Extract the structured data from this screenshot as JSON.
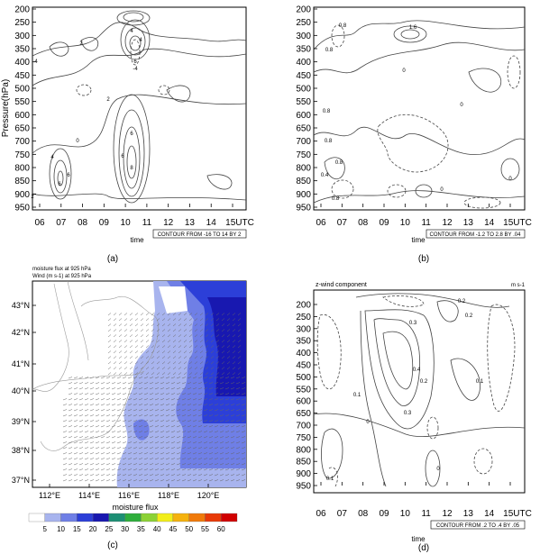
{
  "chart_data": [
    {
      "panel": "(a)",
      "type": "contour",
      "ylabel": "Pressure(hPa)",
      "xlabel": "time",
      "x_ticks": [
        "06",
        "07",
        "08",
        "09",
        "10",
        "11",
        "12",
        "13",
        "14",
        "15UTC"
      ],
      "y_ticks": [
        "200",
        "250",
        "300",
        "350",
        "400",
        "450",
        "500",
        "550",
        "600",
        "650",
        "700",
        "750",
        "800",
        "850",
        "900",
        "950"
      ],
      "contour_info": "CONTOUR FROM -16 TO 14 BY 2",
      "contour_labels": [
        "4",
        "2",
        "4",
        "4",
        "6",
        "-4",
        "0",
        "6",
        "8",
        "2",
        "2",
        "4",
        "6",
        "6",
        "6"
      ]
    },
    {
      "panel": "(b)",
      "type": "contour",
      "xlabel": "time",
      "x_ticks": [
        "06",
        "07",
        "08",
        "09",
        "10",
        "11",
        "12",
        "13",
        "14",
        "15UTC"
      ],
      "y_ticks": [
        "200",
        "250",
        "300",
        "350",
        "400",
        "450",
        "500",
        "550",
        "600",
        "650",
        "700",
        "750",
        "800",
        "850",
        "900",
        "950"
      ],
      "contour_info": "CONTOUR FROM -1.2 TO 2.8 BY .04",
      "contour_labels": [
        "0.8",
        "1.6",
        "0.8",
        "0.8",
        "0",
        "0.8",
        "0",
        "0.8",
        "0.4",
        "0.8",
        "0",
        "0"
      ]
    },
    {
      "panel": "(c)",
      "type": "map",
      "title_lines": [
        "moisture flux at 925 hPa",
        "Wind (m s-1) at 925 hPa"
      ],
      "x_ticks": [
        "112°E",
        "114°E",
        "116°E",
        "118°E",
        "120°E"
      ],
      "y_ticks": [
        "43°N",
        "42°N",
        "41°N",
        "40°N",
        "39°N",
        "38°N",
        "37°N"
      ],
      "colorbar_label": "moisture flux",
      "colorbar_ticks": [
        "5",
        "10",
        "15",
        "20",
        "25",
        "30",
        "35",
        "40",
        "45",
        "50",
        "55",
        "60"
      ],
      "colorbar_colors": [
        "#ffffff",
        "#a8b4ee",
        "#6f7fe6",
        "#2c3fd8",
        "#1818b0",
        "#1d8f74",
        "#2fae3c",
        "#8cd236",
        "#f2ee1a",
        "#f5b20e",
        "#f07a0a",
        "#e83a08",
        "#d10000"
      ]
    },
    {
      "panel": "(d)",
      "type": "contour",
      "title_left": "z-wind component",
      "title_right": "m s-1",
      "xlabel": "time",
      "x_ticks": [
        "06",
        "07",
        "08",
        "09",
        "10",
        "11",
        "12",
        "13",
        "14",
        "15UTC"
      ],
      "y_ticks": [
        "200",
        "250",
        "300",
        "350",
        "400",
        "450",
        "500",
        "550",
        "600",
        "650",
        "700",
        "750",
        "800",
        "850",
        "900",
        "950"
      ],
      "contour_info": "CONTOUR FROM .2 TO .4 BY .05",
      "contour_labels": [
        "0.2",
        "0.3",
        "0.2",
        "0.4",
        "0.2",
        "0.3",
        "0.1",
        "0",
        "0.1",
        "0.1",
        "0"
      ]
    }
  ]
}
